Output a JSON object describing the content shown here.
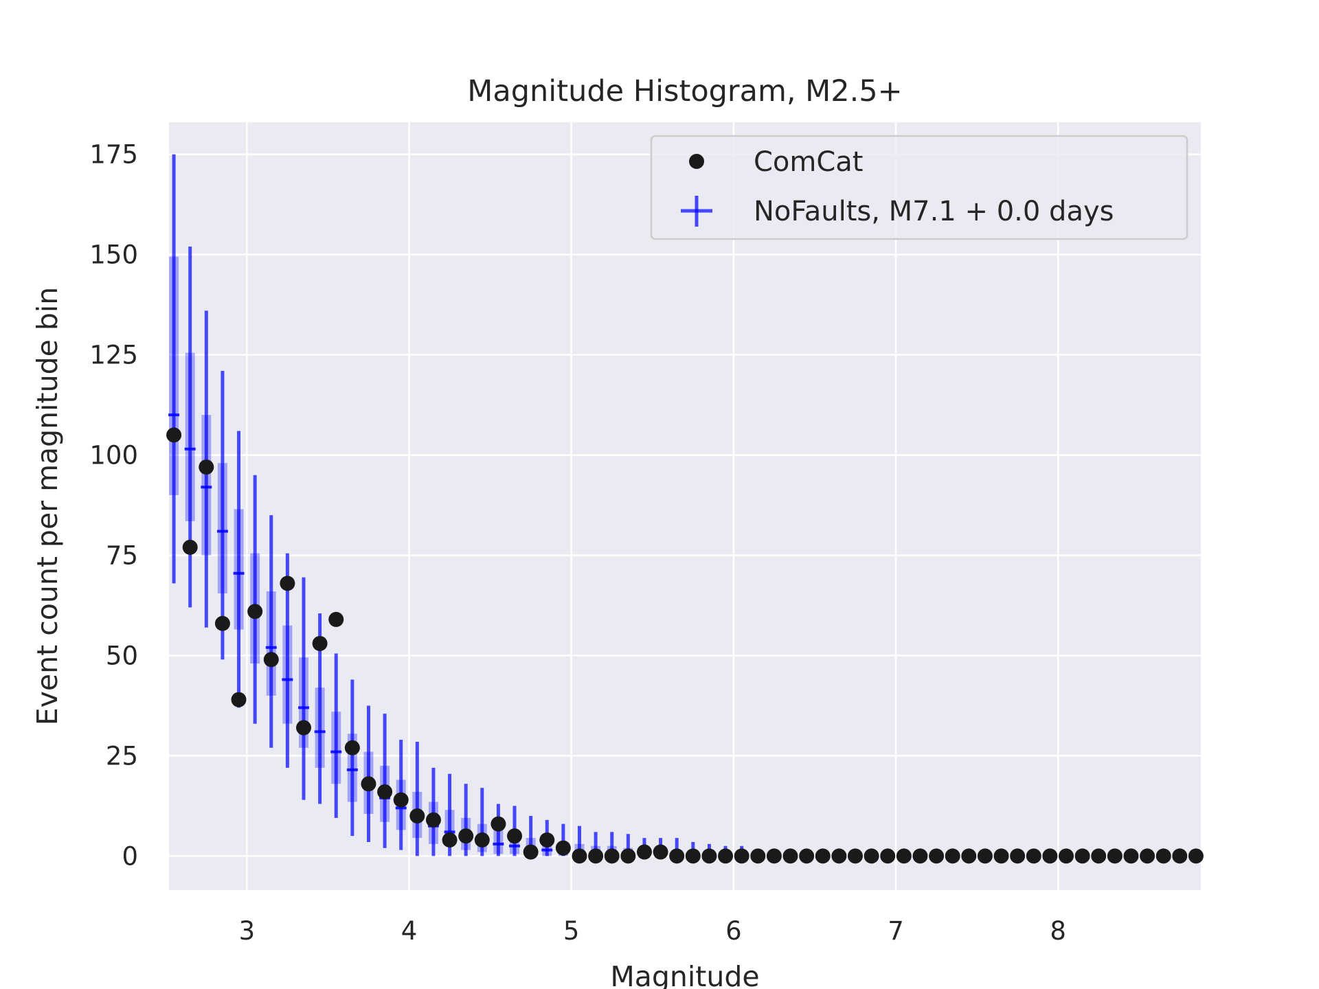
{
  "chart_data": {
    "type": "scatter",
    "title": "Magnitude Histogram, M2.5+",
    "xlabel": "Magnitude",
    "ylabel": "Event count per magnitude bin",
    "xlim": [
      2.52,
      8.88
    ],
    "ylim": [
      -8.5,
      183
    ],
    "xticks": [
      3,
      4,
      5,
      6,
      7,
      8
    ],
    "yticks": [
      0,
      25,
      50,
      75,
      100,
      125,
      150,
      175
    ],
    "grid": true,
    "legend_position": "top-right",
    "colors": {
      "background": "#EAEAF2",
      "grid": "#FFFFFF",
      "comcat": "#1A1A1A",
      "forecast": "#0000FF",
      "text": "#262626"
    },
    "series": [
      {
        "name": "ComCat",
        "kind": "points",
        "x": [
          2.55,
          2.65,
          2.75,
          2.85,
          2.95,
          3.05,
          3.15,
          3.25,
          3.35,
          3.45,
          3.55,
          3.65,
          3.75,
          3.85,
          3.95,
          4.05,
          4.15,
          4.25,
          4.35,
          4.45,
          4.55,
          4.65,
          4.75,
          4.85,
          4.95,
          5.05,
          5.15,
          5.25,
          5.35,
          5.45,
          5.55,
          5.65,
          5.75,
          5.85,
          5.95,
          6.05,
          6.15,
          6.25,
          6.35,
          6.45,
          6.55,
          6.65,
          6.75,
          6.85,
          6.95,
          7.05,
          7.15,
          7.25,
          7.35,
          7.45,
          7.55,
          7.65,
          7.75,
          7.85,
          7.95,
          8.05,
          8.15,
          8.25,
          8.35,
          8.45,
          8.55,
          8.65,
          8.75,
          8.85
        ],
        "y": [
          105,
          77,
          97,
          58,
          39,
          61,
          49,
          68,
          32,
          53,
          59,
          27,
          18,
          16,
          14,
          10,
          9,
          4,
          5,
          4,
          8,
          5,
          1,
          4,
          2,
          0,
          0,
          0,
          0,
          1,
          1,
          0,
          0,
          0,
          0,
          0,
          0,
          0,
          0,
          0,
          0,
          0,
          0,
          0,
          0,
          0,
          0,
          0,
          0,
          0,
          0,
          0,
          0,
          0,
          0,
          0,
          0,
          0,
          0,
          0,
          0,
          0,
          0,
          0
        ]
      },
      {
        "name": "NoFaults, M7.1 + 0.0 days",
        "kind": "forecast-range",
        "x": [
          2.55,
          2.65,
          2.75,
          2.85,
          2.95,
          3.05,
          3.15,
          3.25,
          3.35,
          3.45,
          3.55,
          3.65,
          3.75,
          3.85,
          3.95,
          4.05,
          4.15,
          4.25,
          4.35,
          4.45,
          4.55,
          4.65,
          4.75,
          4.85,
          4.95,
          5.05,
          5.15,
          5.25,
          5.35,
          5.45,
          5.55,
          5.65,
          5.75,
          5.85,
          5.95,
          6.05
        ],
        "median": [
          110,
          101.5,
          92,
          81,
          70.5,
          60.5,
          52,
          44,
          37,
          31,
          26,
          21.5,
          17.5,
          14.5,
          12,
          9.5,
          7.5,
          6,
          5,
          4,
          3,
          2.5,
          2,
          1.5,
          1,
          1,
          0.5,
          0.5,
          0.5,
          0,
          0,
          0,
          0,
          0,
          0,
          0
        ],
        "low": [
          68,
          62,
          57,
          49,
          37,
          33,
          27,
          22,
          14,
          13,
          9.5,
          5,
          3.5,
          2,
          1.5,
          0,
          0,
          0,
          0,
          0,
          0,
          0,
          0,
          0,
          0,
          0,
          0,
          0,
          0,
          0,
          0,
          0,
          0,
          0,
          0,
          0
        ],
        "high": [
          175,
          152,
          136,
          121,
          106,
          95,
          85,
          75.5,
          69.5,
          60.5,
          50.5,
          44,
          37.5,
          35.5,
          29,
          28.5,
          22,
          20.5,
          18,
          17,
          13,
          12.5,
          10,
          9,
          8,
          7.5,
          6,
          6,
          5.5,
          4.5,
          4.5,
          4.5,
          3.5,
          3,
          2.5,
          2.5
        ],
        "q_low": [
          90,
          83.5,
          75,
          65.5,
          56.5,
          48,
          40,
          33,
          27,
          22,
          18,
          13.5,
          10.5,
          8.5,
          6.5,
          4.5,
          3,
          2.5,
          1.5,
          1,
          0.5,
          0.5,
          0.5,
          0,
          0,
          0,
          0,
          0,
          0,
          0,
          0,
          0,
          0,
          0,
          0,
          0
        ],
        "q_high": [
          149.5,
          125.5,
          110,
          98,
          86.5,
          75.5,
          66,
          57.5,
          49.5,
          42,
          36,
          30.5,
          26,
          22.5,
          19,
          16,
          13.5,
          11.5,
          9.5,
          8,
          6.5,
          5.5,
          4.5,
          4,
          3.5,
          3,
          2.5,
          2.5,
          2,
          1.5,
          1.5,
          1,
          1,
          1,
          0.5,
          0.5
        ]
      }
    ]
  }
}
